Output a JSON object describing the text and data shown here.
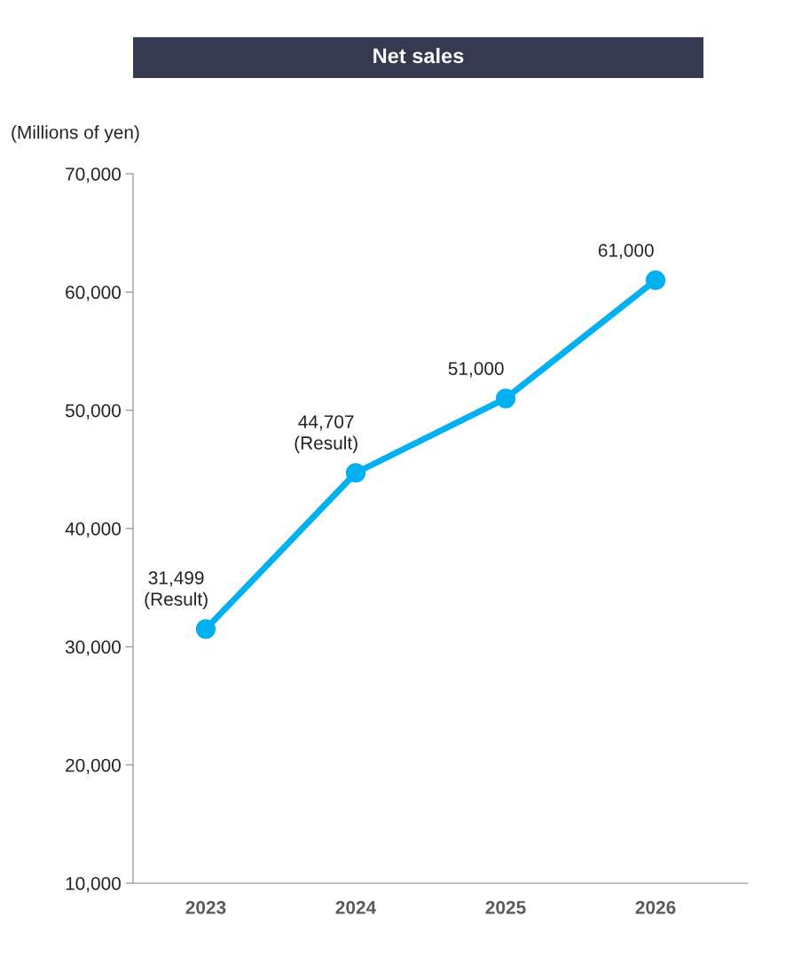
{
  "chart_data": {
    "type": "line",
    "title": "Net sales",
    "ylabel": "(Millions of yen)",
    "categories": [
      "2023",
      "2024",
      "2025",
      "2026"
    ],
    "series": [
      {
        "color": "#00b0f0",
        "values": [
          31499,
          44707,
          51000,
          61000
        ],
        "value_labels": [
          "31,499\n(Result)",
          "44,707\n(Result)",
          "51,000",
          "61,000"
        ]
      }
    ],
    "ylim": [
      10000,
      70000
    ],
    "yticks": [
      {
        "value": 10000,
        "label": "10,000"
      },
      {
        "value": 20000,
        "label": "20,000"
      },
      {
        "value": 30000,
        "label": "30,000"
      },
      {
        "value": 40000,
        "label": "40,000"
      },
      {
        "value": 50000,
        "label": "50,000"
      },
      {
        "value": 60000,
        "label": "60,000"
      },
      {
        "value": 70000,
        "label": "70,000"
      }
    ],
    "grid": false,
    "legend": false,
    "marker": "circle",
    "line_style": "solid"
  }
}
